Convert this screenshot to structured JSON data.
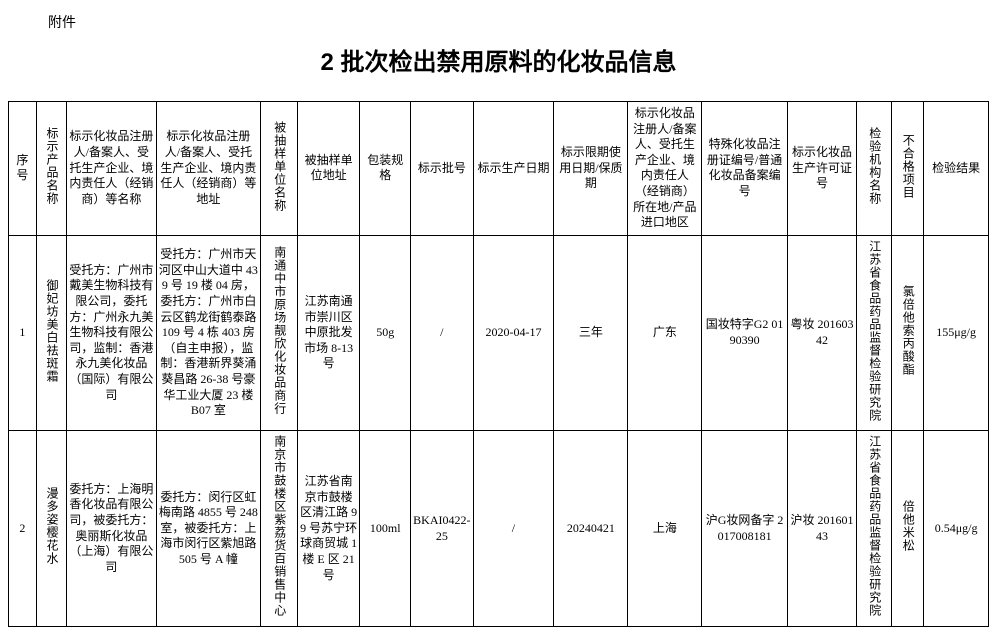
{
  "attachment_label": "附件",
  "title": "2 批次检出禁用原料的化妆品信息",
  "columns": [
    "序号",
    "标示产品名称",
    "标示化妆品注册人/备案人、受托生产企业、境内责任人（经销商）等名称",
    "标示化妆品注册人/备案人、受托生产企业、境内责任人（经销商）等地址",
    "被抽样单位名称",
    "被抽样单位地址",
    "包装规格",
    "标示批号",
    "标示生产日期",
    "标示限期使用日期/保质期",
    "标示化妆品注册人/备案人、受托生产企业、境内责任人（经销商）所在地/产品进口地区",
    "特殊化妆品注册证编号/普通化妆品备案编号",
    "标示化妆品生产许可证号",
    "检验机构名称",
    "不合格项目",
    "检验结果"
  ],
  "rows": [
    {
      "idx": "1",
      "name": "御妃坊美白祛斑霜",
      "registrant": "受托方：广州市戴美生物科技有限公司，委托方：广州永九美生物科技有限公司，监制：香港永九美化妆品（国际）有限公司",
      "reg_addr": "受托方：广州市天河区中山大道中 439 号 19 楼 04 房，委托方：广州市白云区鹤龙街鹤泰路 109 号 4 栋 403 房（自主申报），监制：香港新界葵涌葵昌路 26-38 号豪华工业大厦 23 楼 B07 室",
      "sampled_unit": "南通中市原场靓欣化妆品商行",
      "sampled_addr": "江苏南通市崇川区中原批发市场 8-13 号",
      "spec": "50g",
      "batch": "/",
      "prod_date": "2020-04-17",
      "expiry": "三年",
      "location": "广东",
      "reg_no": "国妆特字G2\n0190390",
      "license": "粤妆\n20160342",
      "inspect_inst": "江苏省食品药品监督检验研究院",
      "fail_item": "氯倍他索丙酸酯",
      "result": "155μg/g"
    },
    {
      "idx": "2",
      "name": "漫多姿樱花水",
      "registrant": "委托方：上海明香化妆品有限公司，被委托方：奥丽斯化妆品（上海）有限公司",
      "reg_addr": "委托方：闵行区虹梅南路 4855 号 248 室，被委托方：上海市闵行区紫旭路 505 号 A 幢",
      "sampled_unit": "南京市鼓楼区紫荔货百销售中心",
      "sampled_addr": "江苏省南京市鼓楼区清江路 99 号苏宁环球商贸城 1 楼 E 区 21 号",
      "spec": "100ml",
      "batch": "BKAI0422-25",
      "prod_date": "/",
      "expiry": "20240421",
      "location": "上海",
      "reg_no": "沪G妆网备字\n2017008181",
      "license": "沪妆\n20160143",
      "inspect_inst": "江苏省食品药品监督检验研究院",
      "fail_item": "倍他米松",
      "result": "0.54μg/g"
    }
  ]
}
